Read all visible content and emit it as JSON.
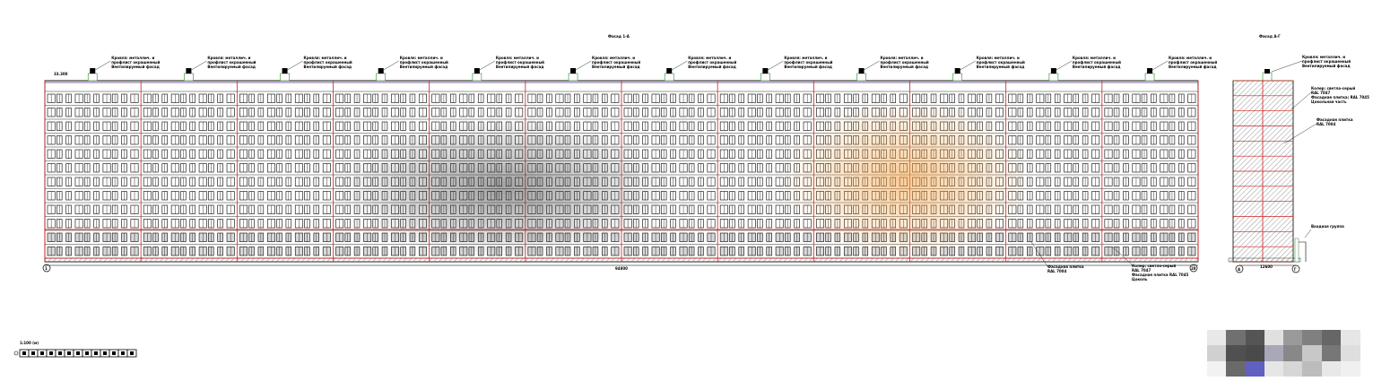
{
  "drawing": {
    "main_title": "Фасад 1-А",
    "side_title": "Фасад А-Г",
    "main_elevation_mark": "33.300",
    "dimension_text": "94800",
    "main_axis_left": "1",
    "main_axis_right": "28",
    "side_axis_left": "А",
    "side_axis_right": "Г",
    "side_bottom_dim": "12600",
    "callout_roof_lines": [
      "Кровля: металлич. и",
      "профлист окрашенный",
      "Вентилируемый фасад"
    ],
    "callout_side_1": [
      "Колер: светло-серый",
      "RAL 7047",
      "Фасадная плитка: RAL 7045",
      "Цокольная часть"
    ],
    "callout_side_2": [
      "Фасадная плитка",
      "RAL 7004"
    ],
    "callout_side_entry": "Входная группа",
    "callout_bottom_1": [
      "Фасадная плитка",
      "RAL 7004"
    ],
    "callout_bottom_2": [
      "Колер: светло-серый",
      "RAL 7047",
      "Фасадная плитка RAL 7045",
      "Цоколь"
    ],
    "scale_label": "1:100 (м)",
    "colors": {
      "line": "#000000",
      "accent_red": "#cc2222",
      "accent_green": "#2a8a2a",
      "accent_purple": "#6a2a8a",
      "hatch": "#888888",
      "watermark_orange": "#f0a040",
      "watermark_gray": "#404040"
    }
  }
}
